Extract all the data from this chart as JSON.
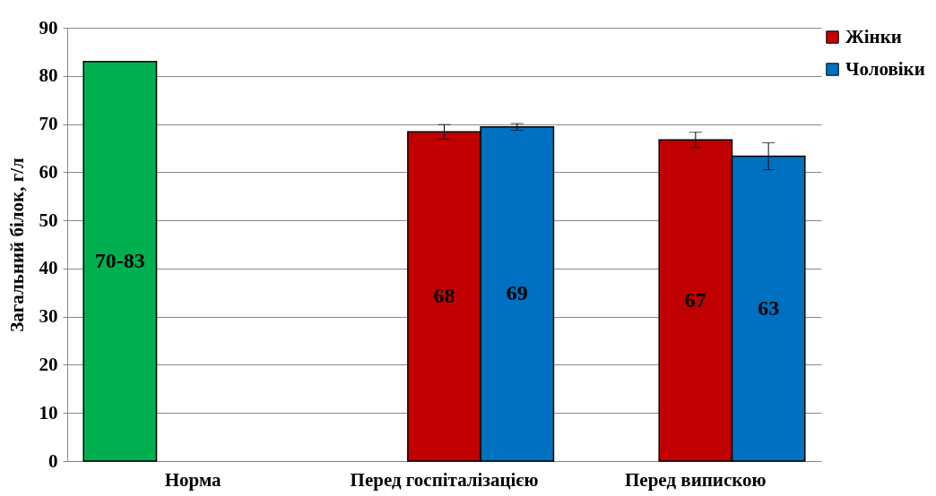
{
  "chart_data": {
    "type": "bar",
    "ylabel": "Загальний білок,  г/л",
    "categories": [
      "Норма",
      "Перед госпіталізацією",
      "Перед випискою"
    ],
    "series": [
      {
        "color": "#00b050",
        "values": [
          83,
          null,
          null
        ],
        "value_labels": [
          "70-83",
          null,
          null
        ]
      },
      {
        "name": "Жінки",
        "color": "#c00000",
        "values": [
          null,
          68.4,
          66.7
        ],
        "errors": [
          null,
          1.5,
          1.6
        ],
        "value_labels": [
          null,
          "68",
          "67"
        ]
      },
      {
        "name": "Чоловіки",
        "color": "#0070c0",
        "values": [
          null,
          69.4,
          63.3
        ],
        "errors": [
          null,
          0.7,
          2.8
        ],
        "value_labels": [
          null,
          "69",
          "63"
        ]
      }
    ],
    "ylim": [
      0,
      90
    ],
    "yticks": [
      0,
      10,
      20,
      30,
      40,
      50,
      60,
      70,
      80,
      90
    ],
    "grid": "y",
    "legend": "right"
  }
}
